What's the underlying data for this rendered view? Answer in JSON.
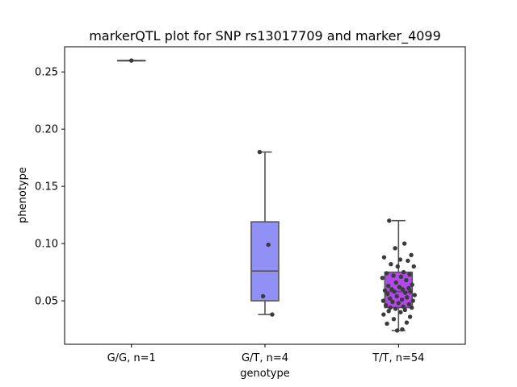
{
  "chart_data": {
    "type": "box",
    "title": "markerQTL plot for SNP rs13017709 and marker_4099",
    "xlabel": "genotype",
    "ylabel": "phenotype",
    "ylim": [
      0.012,
      0.272
    ],
    "yticks": [
      0.05,
      0.1,
      0.15,
      0.2,
      0.25
    ],
    "ytick_labels": [
      "0.05",
      "0.10",
      "0.15",
      "0.20",
      "0.25"
    ],
    "grid": false,
    "legend": "none",
    "categories": [
      "G/G, n=1",
      "G/T, n=4",
      "T/T, n=54"
    ],
    "boxes": [
      {
        "category": "G/G, n=1",
        "color": "#6b6bff",
        "min": 0.26,
        "q1": 0.26,
        "median": 0.26,
        "q3": 0.26,
        "max": 0.26,
        "points": [
          0.26
        ]
      },
      {
        "category": "G/T, n=4",
        "color": "#9090f5",
        "min": 0.038,
        "q1": 0.05,
        "median": 0.076,
        "q3": 0.119,
        "max": 0.18,
        "points": [
          0.18,
          0.099,
          0.054,
          0.038
        ]
      },
      {
        "category": "T/T, n=54",
        "color": "#b04ae8",
        "min": 0.024,
        "q1": 0.044,
        "median": 0.058,
        "q3": 0.075,
        "max": 0.12,
        "points": [
          0.12,
          0.1,
          0.096,
          0.09,
          0.088,
          0.086,
          0.085,
          0.082,
          0.08,
          0.08,
          0.075,
          0.074,
          0.073,
          0.072,
          0.071,
          0.07,
          0.068,
          0.066,
          0.064,
          0.063,
          0.062,
          0.061,
          0.06,
          0.06,
          0.059,
          0.058,
          0.058,
          0.057,
          0.056,
          0.055,
          0.054,
          0.053,
          0.052,
          0.051,
          0.05,
          0.05,
          0.049,
          0.048,
          0.047,
          0.046,
          0.045,
          0.044,
          0.044,
          0.043,
          0.042,
          0.041,
          0.04,
          0.038,
          0.036,
          0.034,
          0.031,
          0.03,
          0.025,
          0.024
        ]
      }
    ]
  }
}
